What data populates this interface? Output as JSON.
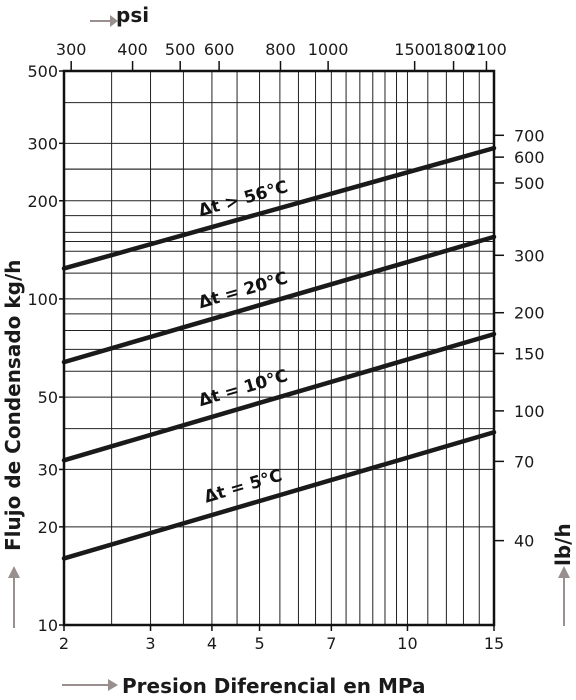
{
  "chart_data": {
    "type": "line",
    "x_scale": "log",
    "y_scale": "log",
    "xlim": [
      2,
      15
    ],
    "ylim": [
      10,
      500
    ],
    "xlabel": "Presion Diferencial en MPa",
    "ylabel": "Flujo de Condensado kg/h",
    "x2label": "psi",
    "y2label": "lb/h",
    "x_ticks": [
      2,
      3,
      4,
      5,
      7,
      10,
      15
    ],
    "y_ticks": [
      10,
      20,
      30,
      50,
      100,
      200,
      300,
      500
    ],
    "x2_ticks": [
      300,
      400,
      500,
      600,
      800,
      1000,
      1500,
      1800,
      2100
    ],
    "y2_ticks": [
      40,
      70,
      100,
      150,
      200,
      300,
      500,
      600,
      700
    ],
    "grid": true,
    "series": [
      {
        "name": "Δt > 56°C",
        "x": [
          2,
          15
        ],
        "y": [
          124,
          290
        ]
      },
      {
        "name": "Δt = 20°C",
        "x": [
          2,
          15
        ],
        "y": [
          64,
          155
        ]
      },
      {
        "name": "Δt = 10°C",
        "x": [
          2,
          15
        ],
        "y": [
          32,
          78
        ]
      },
      {
        "name": "Δt = 5°C",
        "x": [
          2,
          15
        ],
        "y": [
          16,
          39
        ]
      }
    ]
  },
  "colors": {
    "line": "#1a1a1a",
    "grid": "#222222",
    "arrow": "#9a8f8f"
  }
}
